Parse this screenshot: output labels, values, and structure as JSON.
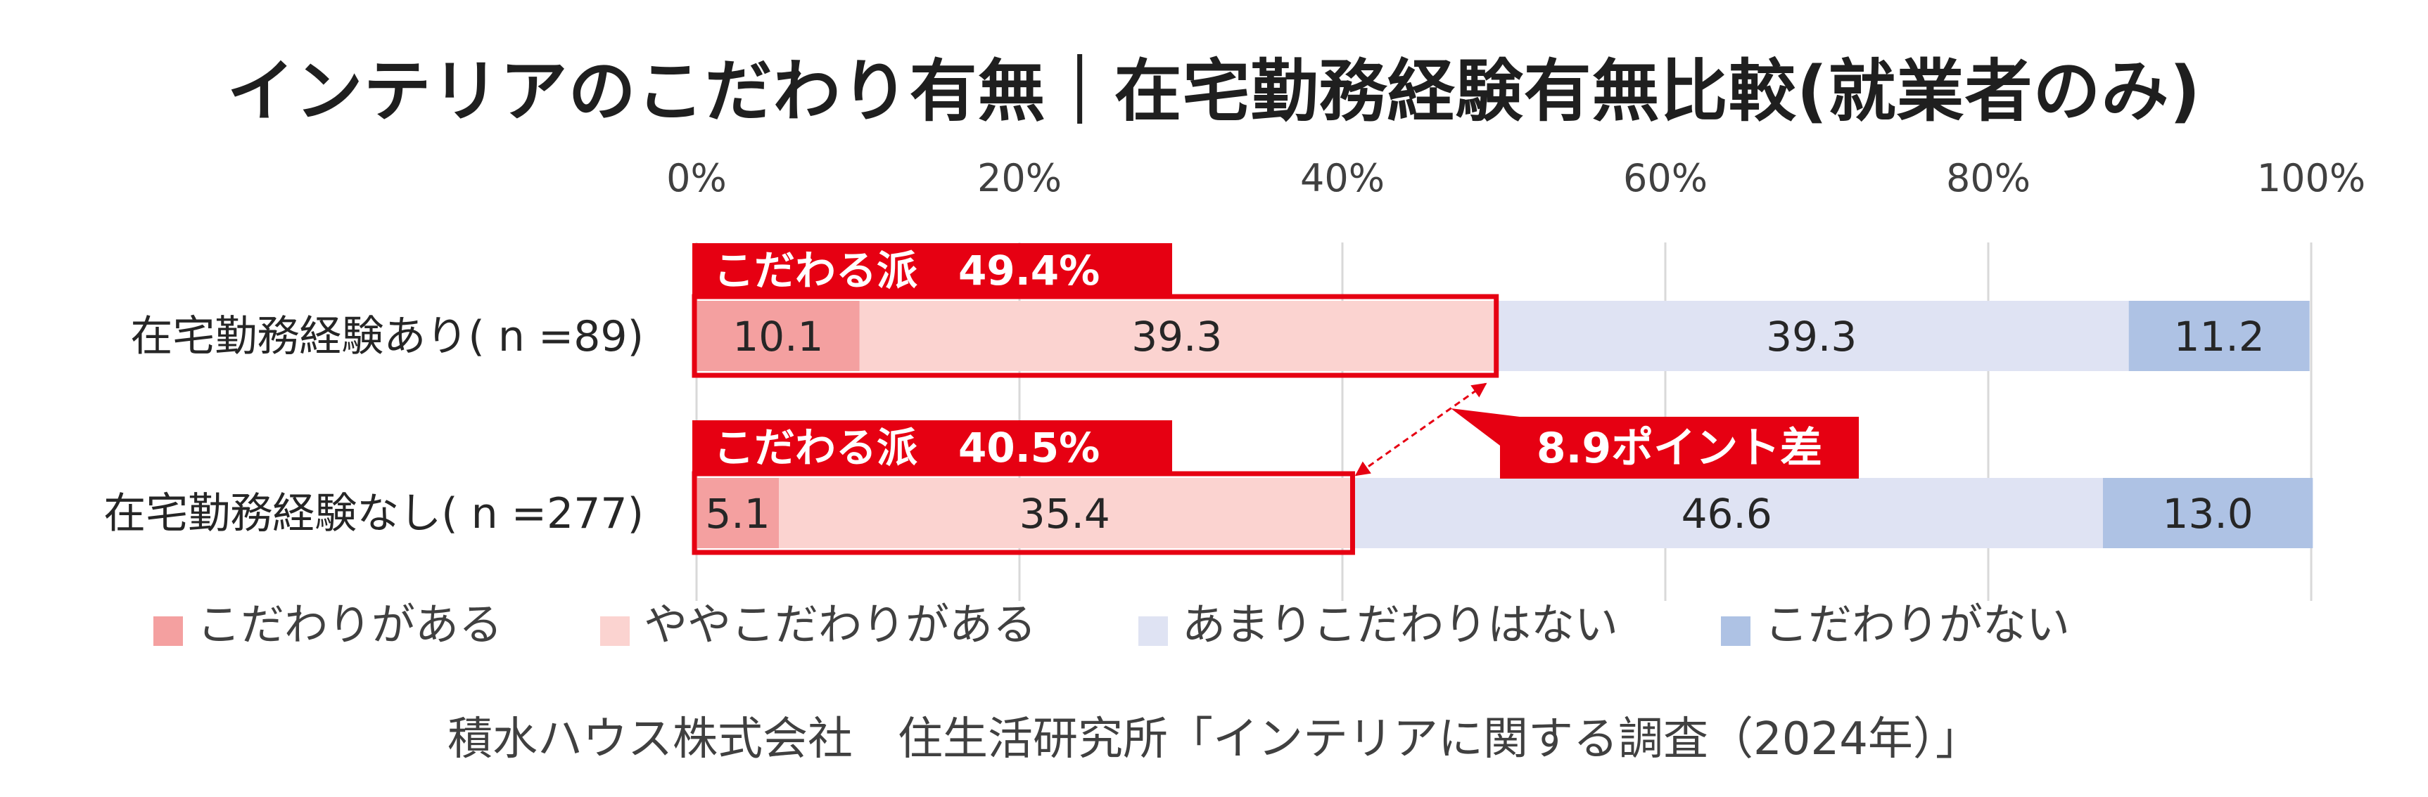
{
  "title": "インテリアのこだわり有無｜在宅勤務経験有無比較(就業者のみ)",
  "source": "積水ハウス株式会社　住生活研究所「インテリアに関する調査（2024年）」",
  "chart_data": {
    "type": "bar",
    "orientation": "horizontal",
    "stacked": "percent",
    "xlim": [
      0,
      100
    ],
    "x_ticks": [
      "0%",
      "20%",
      "40%",
      "60%",
      "80%",
      "100%"
    ],
    "grid": "vertical",
    "legend_position": "bottom",
    "categories": [
      "在宅勤務経験あり( n =89)",
      "在宅勤務経験なし( n =277)"
    ],
    "series": [
      {
        "name": "こだわりがある",
        "color": "#f4a0a0",
        "values": [
          10.1,
          5.1
        ]
      },
      {
        "name": "ややこだわりがある",
        "color": "#fbd3d0",
        "values": [
          39.3,
          35.4
        ]
      },
      {
        "name": "あまりこだわりはない",
        "color": "#dfe3f3",
        "values": [
          39.3,
          46.6
        ]
      },
      {
        "name": "こだわりがない",
        "color": "#aec2e4",
        "values": [
          11.2,
          13.0
        ]
      }
    ],
    "value_labels": [
      [
        "10.1",
        "39.3",
        "39.3",
        "11.2"
      ],
      [
        "5.1",
        "35.4",
        "46.6",
        "13.0"
      ]
    ],
    "group_labels": [
      "こだわる派　49.4%",
      "こだわる派　40.5%"
    ],
    "group_values": [
      49.4,
      40.5
    ],
    "difference_label": "8.9ポイント差",
    "accent_color": "#e60012"
  }
}
